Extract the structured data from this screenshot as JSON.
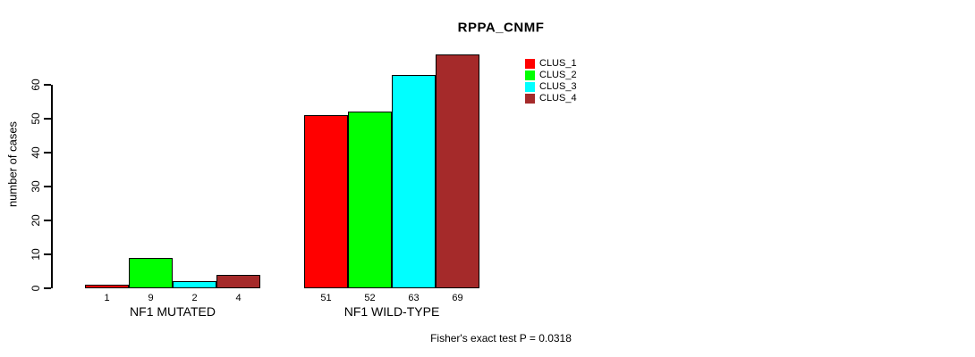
{
  "chart_data": {
    "type": "bar",
    "title": "RPPA_CNMF",
    "ylabel": "number of cases",
    "xlabel": "",
    "categories": [
      "NF1 MUTATED",
      "NF1 WILD-TYPE"
    ],
    "series": [
      {
        "name": "CLUS_1",
        "color": "#ff0000",
        "values": [
          1,
          51
        ]
      },
      {
        "name": "CLUS_2",
        "color": "#00ff00",
        "values": [
          9,
          52
        ]
      },
      {
        "name": "CLUS_3",
        "color": "#00ffff",
        "values": [
          2,
          63
        ]
      },
      {
        "name": "CLUS_4",
        "color": "#a52a2a",
        "values": [
          4,
          69
        ]
      }
    ],
    "yticks": [
      0,
      10,
      20,
      30,
      40,
      50,
      60
    ],
    "ylim": [
      0,
      69
    ],
    "bar_value_labels_shown": true,
    "grid": false,
    "legend_position": "top-right",
    "footnote": "Fisher's exact test P = 0.0318"
  }
}
